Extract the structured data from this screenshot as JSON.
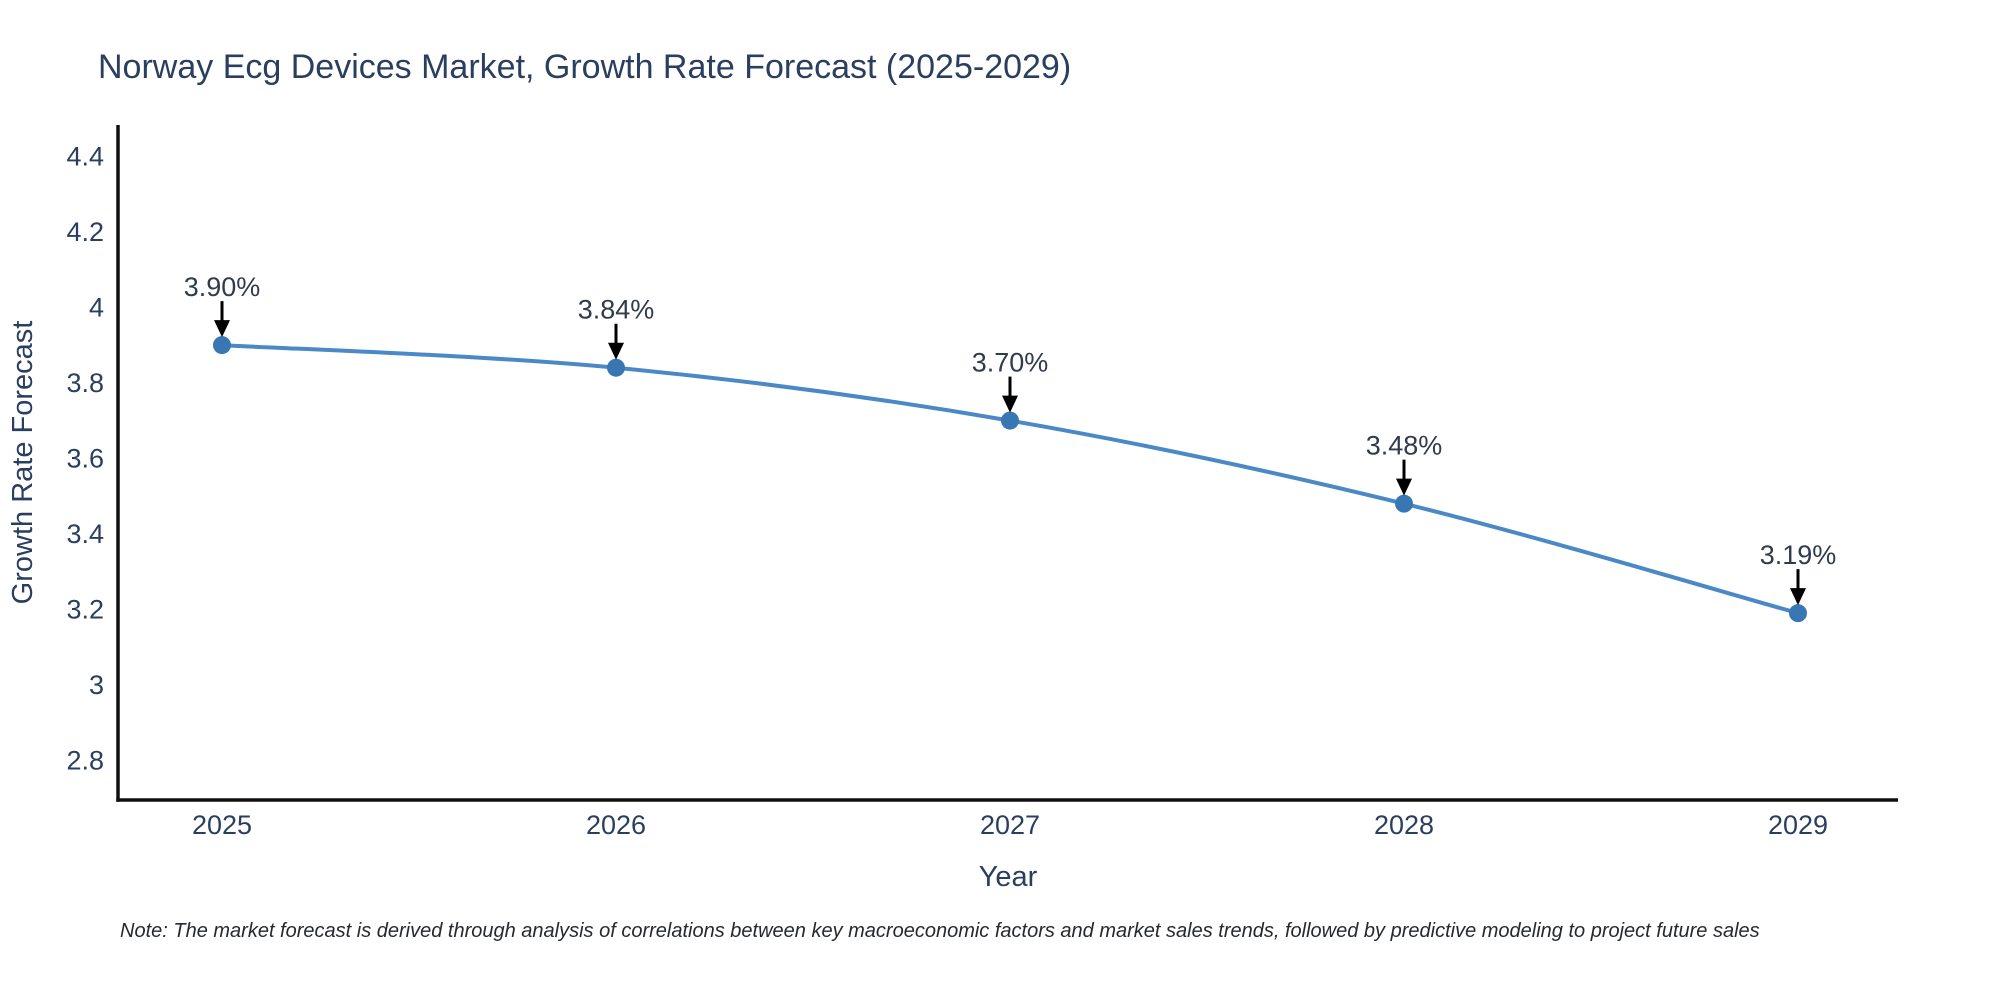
{
  "title": {
    "text": "Norway Ecg Devices Market, Growth Rate Forecast (2025-2029)"
  },
  "note": {
    "text": "Note: The market forecast is derived through analysis of correlations between key macroeconomic factors and market sales trends, followed by predictive modeling to project future sales"
  },
  "colors": {
    "title": "#2a3f5f",
    "tick_label": "#2a3f5f",
    "axis_title": "#2a3f5f",
    "axis_line": "#101010",
    "line": "#4a89c5",
    "marker": "#3876b4",
    "annotation_text": "#313b4c",
    "arrow": "#000000",
    "background": "#ffffff"
  },
  "chart_data": {
    "type": "line",
    "title": "Norway Ecg Devices Market, Growth Rate Forecast (2025-2029)",
    "xlabel": "Year",
    "ylabel": "Growth Rate Forecast",
    "x": [
      "2025",
      "2026",
      "2027",
      "2028",
      "2029"
    ],
    "series": [
      {
        "name": "Growth Rate Forecast",
        "values": [
          3.9,
          3.84,
          3.7,
          3.48,
          3.19
        ]
      }
    ],
    "point_labels": [
      "3.90%",
      "3.84%",
      "3.70%",
      "3.48%",
      "3.19%"
    ],
    "ylim": [
      2.695,
      4.483
    ],
    "yticks": [
      2.8,
      3.0,
      3.2,
      3.4,
      3.6,
      3.8,
      4.0,
      4.2,
      4.4
    ],
    "ytick_labels": [
      "2.8",
      "3",
      "3.2",
      "3.4",
      "3.6",
      "3.8",
      "4",
      "4.2",
      "4.4"
    ],
    "grid": false,
    "legend_position": "none",
    "line_shape": "spline",
    "marker_style": "circle",
    "annotation_arrows": true
  }
}
